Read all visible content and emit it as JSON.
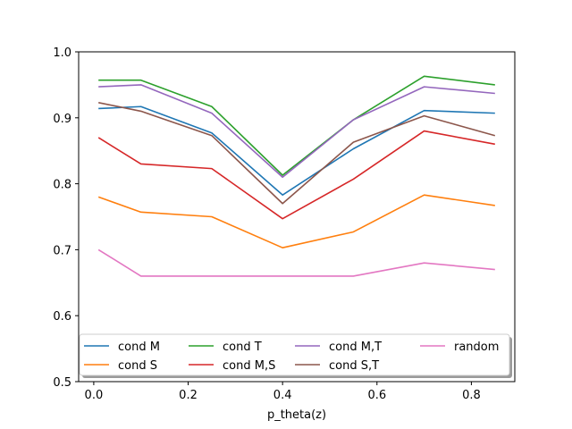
{
  "chart_data": {
    "type": "line",
    "xlabel": "p_theta(z)",
    "ylabel": "",
    "x": [
      0.01,
      0.1,
      0.25,
      0.4,
      0.55,
      0.7,
      0.85
    ],
    "xlim": [
      -0.032,
      0.892
    ],
    "ylim": [
      0.5,
      1.0
    ],
    "xticks": [
      0.0,
      0.2,
      0.4,
      0.6,
      0.8
    ],
    "xtick_labels": [
      "0.0",
      "0.2",
      "0.4",
      "0.6",
      "0.8"
    ],
    "yticks": [
      0.5,
      0.6,
      0.7,
      0.8,
      0.9,
      1.0
    ],
    "ytick_labels": [
      "0.5",
      "0.6",
      "0.7",
      "0.8",
      "0.9",
      "1.0"
    ],
    "grid": false,
    "legend_position": "lower center",
    "legend_columns": 4,
    "series": [
      {
        "name": "cond M",
        "color": "#1f77b4",
        "values": [
          0.914,
          0.917,
          0.877,
          0.783,
          0.853,
          0.911,
          0.907
        ]
      },
      {
        "name": "cond S",
        "color": "#ff7f0e",
        "values": [
          0.78,
          0.757,
          0.75,
          0.703,
          0.727,
          0.783,
          0.767
        ]
      },
      {
        "name": "cond T",
        "color": "#2ca02c",
        "values": [
          0.957,
          0.957,
          0.917,
          0.813,
          0.897,
          0.963,
          0.95
        ]
      },
      {
        "name": "cond M,S",
        "color": "#d62728",
        "values": [
          0.87,
          0.83,
          0.823,
          0.747,
          0.807,
          0.88,
          0.86
        ]
      },
      {
        "name": "cond M,T",
        "color": "#9467bd",
        "values": [
          0.947,
          0.95,
          0.907,
          0.81,
          0.897,
          0.947,
          0.937
        ]
      },
      {
        "name": "cond S,T",
        "color": "#8c564b",
        "values": [
          0.923,
          0.91,
          0.873,
          0.77,
          0.863,
          0.903,
          0.873
        ]
      },
      {
        "name": "random",
        "color": "#e377c2",
        "values": [
          0.7,
          0.66,
          0.66,
          0.66,
          0.66,
          0.68,
          0.67
        ]
      }
    ]
  }
}
